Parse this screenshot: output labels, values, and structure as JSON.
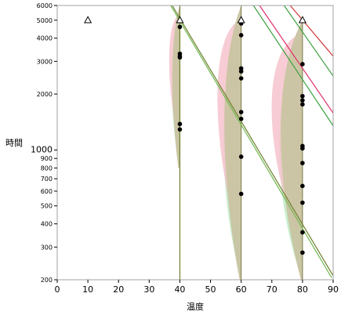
{
  "chart_data": {
    "type": "scatter",
    "xlabel": "温度",
    "ylabel": "時間",
    "x_range": [
      0,
      90
    ],
    "y_range": [
      200,
      6000
    ],
    "y_scale": "log",
    "x_ticks": [
      0,
      10,
      20,
      30,
      40,
      50,
      60,
      70,
      80,
      90
    ],
    "y_ticks": [
      200,
      300,
      400,
      500,
      600,
      700,
      800,
      900,
      1000,
      2000,
      3000,
      4000,
      5000,
      6000
    ],
    "y_tick_labels": [
      "200",
      "300",
      "400",
      "500",
      "600",
      "700",
      "800",
      "900",
      "1000",
      "2000",
      "3000",
      "4000",
      "5000",
      "6000"
    ],
    "points": [
      {
        "x": 40,
        "y": 4600
      },
      {
        "x": 40,
        "y": 3300
      },
      {
        "x": 40,
        "y": 3200
      },
      {
        "x": 40,
        "y": 3150
      },
      {
        "x": 40,
        "y": 1380
      },
      {
        "x": 40,
        "y": 1290
      },
      {
        "x": 60,
        "y": 4800
      },
      {
        "x": 60,
        "y": 4150
      },
      {
        "x": 60,
        "y": 2750
      },
      {
        "x": 60,
        "y": 2650
      },
      {
        "x": 60,
        "y": 2430
      },
      {
        "x": 60,
        "y": 1600
      },
      {
        "x": 60,
        "y": 1470
      },
      {
        "x": 60,
        "y": 920
      },
      {
        "x": 60,
        "y": 580
      },
      {
        "x": 80,
        "y": 2900
      },
      {
        "x": 80,
        "y": 1950
      },
      {
        "x": 80,
        "y": 1850
      },
      {
        "x": 80,
        "y": 1760
      },
      {
        "x": 80,
        "y": 1050
      },
      {
        "x": 80,
        "y": 1020
      },
      {
        "x": 80,
        "y": 850
      },
      {
        "x": 80,
        "y": 640
      },
      {
        "x": 80,
        "y": 520
      },
      {
        "x": 80,
        "y": 360
      },
      {
        "x": 80,
        "y": 280
      }
    ],
    "censored_points": [
      {
        "x": 10,
        "y": 5000
      },
      {
        "x": 40,
        "y": 5000
      },
      {
        "x": 60,
        "y": 5000
      },
      {
        "x": 80,
        "y": 5000
      }
    ],
    "fit_lines": [
      {
        "color": "#6f7f2f",
        "points": [
          [
            40,
            200
          ],
          [
            40,
            6000
          ]
        ]
      },
      {
        "color": "#6f7f2f",
        "points": [
          [
            37.5,
            6000
          ],
          [
            90,
            210
          ]
        ]
      },
      {
        "color": "#6fb84f",
        "points": [
          [
            37,
            6000
          ],
          [
            89.5,
            205
          ]
        ]
      },
      {
        "color": "#e0306a",
        "points": [
          [
            66,
            6000
          ],
          [
            90,
            1580
          ]
        ]
      },
      {
        "color": "#3aa040",
        "points": [
          [
            64,
            6000
          ],
          [
            90,
            1350
          ]
        ]
      },
      {
        "color": "#d43a3a",
        "points": [
          [
            76,
            6000
          ],
          [
            90,
            3200
          ]
        ]
      },
      {
        "color": "#3aa040",
        "points": [
          [
            74,
            6000
          ],
          [
            90,
            2500
          ]
        ]
      }
    ],
    "density_bands": [
      {
        "x": 40,
        "y_top": 6000,
        "y_bottom": 800
      },
      {
        "x": 60,
        "y_top": 6000,
        "y_bottom": 200
      },
      {
        "x": 80,
        "y_top": 5000,
        "y_bottom": 200
      }
    ],
    "colors": {
      "band_tan": "#c9c4a2",
      "band_green": "#b9e8c0",
      "band_pink": "#f6c3cd",
      "point": "#000000"
    }
  }
}
